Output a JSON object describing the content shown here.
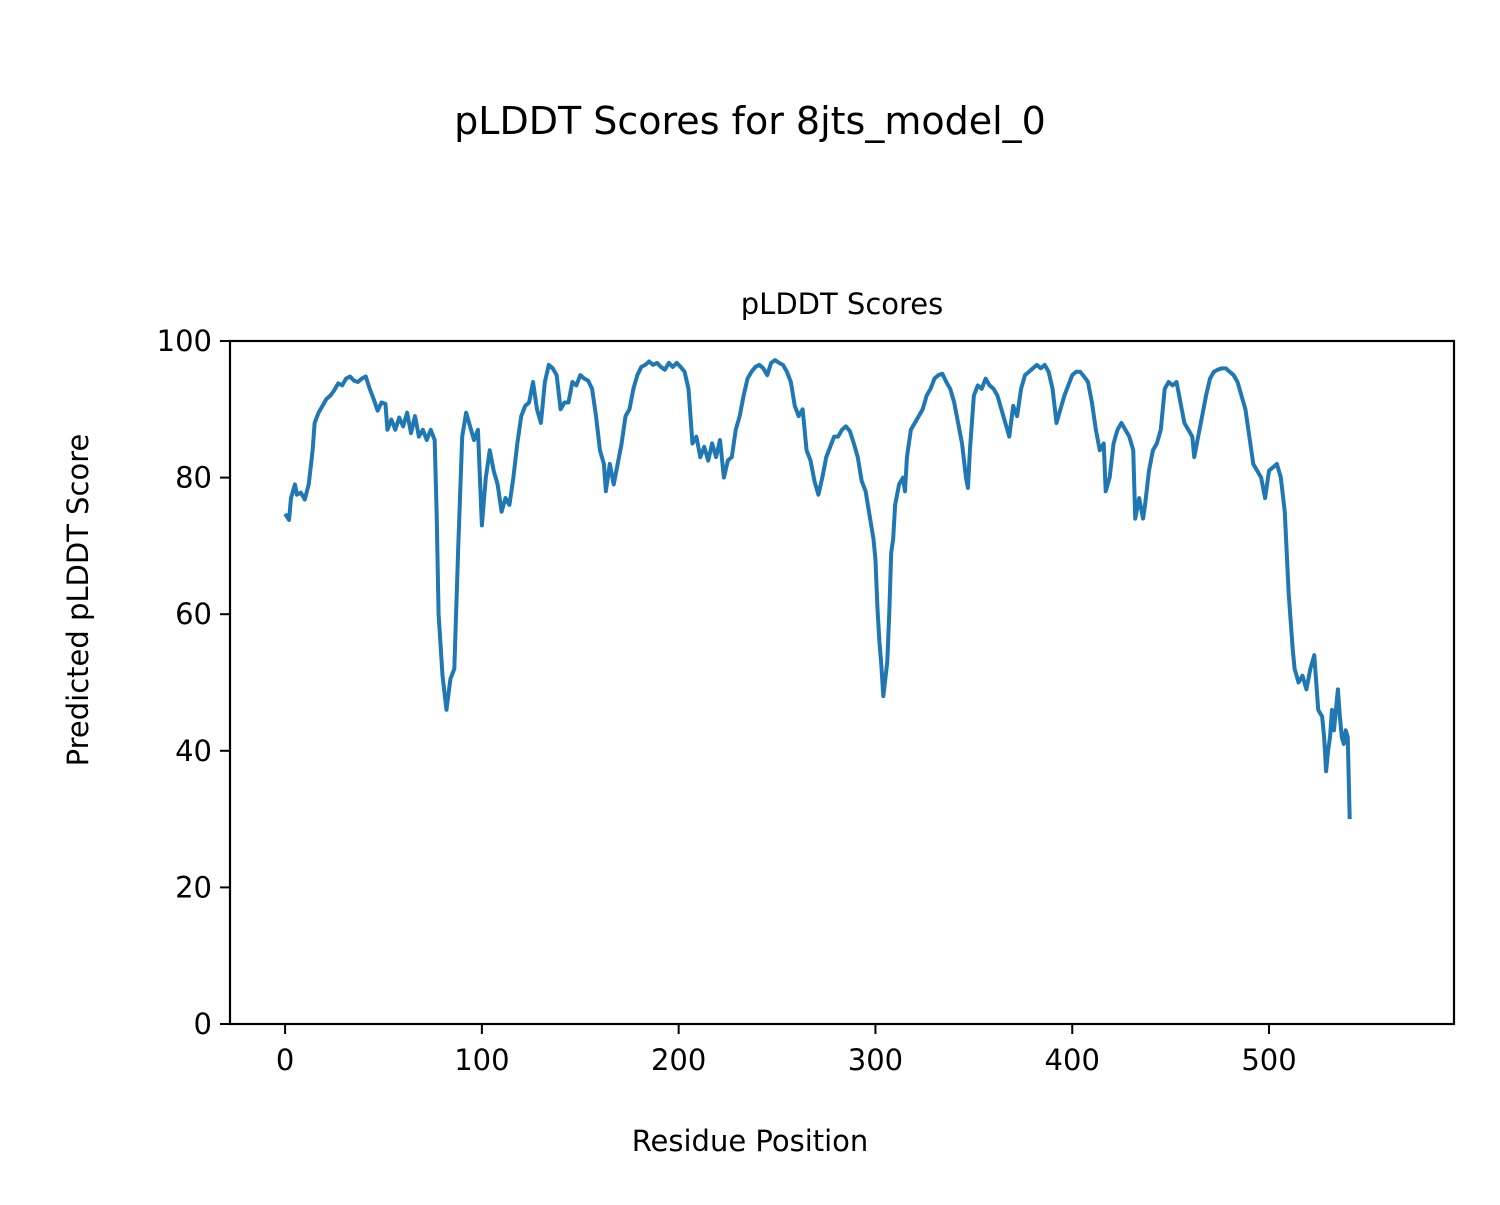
{
  "chart_data": {
    "type": "line",
    "suptitle": "pLDDT Scores for 8jts_model_0",
    "title": "pLDDT Scores",
    "xlabel": "Residue Position",
    "ylabel": "Predicted pLDDT Score",
    "xlim": [
      -28,
      594
    ],
    "ylim": [
      0,
      100
    ],
    "xticks": [
      0,
      100,
      200,
      300,
      400,
      500
    ],
    "yticks": [
      0,
      20,
      40,
      60,
      80,
      100
    ],
    "grid": false,
    "legend": "none",
    "color": "#1f77b4",
    "series": [
      {
        "points": [
          [
            0,
            74.7
          ],
          [
            2,
            73.8
          ],
          [
            3,
            77
          ],
          [
            5,
            79
          ],
          [
            6,
            77.5
          ],
          [
            8,
            77.8
          ],
          [
            10,
            76.8
          ],
          [
            12,
            79
          ],
          [
            14,
            84
          ],
          [
            15,
            88
          ],
          [
            17,
            89.5
          ],
          [
            19,
            90.5
          ],
          [
            21,
            91.5
          ],
          [
            23,
            92
          ],
          [
            25,
            92.8
          ],
          [
            27,
            93.8
          ],
          [
            29,
            93.5
          ],
          [
            31,
            94.5
          ],
          [
            33,
            94.8
          ],
          [
            35,
            94.2
          ],
          [
            37,
            94
          ],
          [
            39,
            94.5
          ],
          [
            41,
            94.8
          ],
          [
            43,
            93
          ],
          [
            45,
            91.5
          ],
          [
            47,
            89.8
          ],
          [
            49,
            91
          ],
          [
            51,
            90.8
          ],
          [
            52,
            87
          ],
          [
            54,
            88.5
          ],
          [
            56,
            87
          ],
          [
            58,
            88.8
          ],
          [
            60,
            87.5
          ],
          [
            62,
            89.5
          ],
          [
            64,
            86.5
          ],
          [
            66,
            89
          ],
          [
            68,
            86
          ],
          [
            70,
            87
          ],
          [
            72,
            85.5
          ],
          [
            74,
            87
          ],
          [
            76,
            85.5
          ],
          [
            77,
            75
          ],
          [
            78,
            60
          ],
          [
            80,
            51
          ],
          [
            82,
            46
          ],
          [
            84,
            50.5
          ],
          [
            86,
            52
          ],
          [
            88,
            70
          ],
          [
            90,
            86
          ],
          [
            92,
            89.5
          ],
          [
            94,
            87.5
          ],
          [
            96,
            85.5
          ],
          [
            98,
            87
          ],
          [
            100,
            73
          ],
          [
            102,
            80
          ],
          [
            104,
            84
          ],
          [
            106,
            81
          ],
          [
            108,
            79
          ],
          [
            110,
            75
          ],
          [
            112,
            77
          ],
          [
            114,
            76
          ],
          [
            116,
            80
          ],
          [
            118,
            85
          ],
          [
            120,
            89
          ],
          [
            122,
            90.5
          ],
          [
            124,
            91
          ],
          [
            126,
            94
          ],
          [
            128,
            90
          ],
          [
            130,
            88
          ],
          [
            132,
            94
          ],
          [
            134,
            96.5
          ],
          [
            136,
            96
          ],
          [
            138,
            95
          ],
          [
            140,
            90
          ],
          [
            142,
            91
          ],
          [
            144,
            91
          ],
          [
            146,
            94
          ],
          [
            148,
            93.5
          ],
          [
            150,
            95
          ],
          [
            152,
            94.5
          ],
          [
            154,
            94.2
          ],
          [
            156,
            93
          ],
          [
            158,
            89
          ],
          [
            160,
            84
          ],
          [
            162,
            82
          ],
          [
            163,
            78
          ],
          [
            165,
            82
          ],
          [
            167,
            79
          ],
          [
            169,
            82
          ],
          [
            171,
            85
          ],
          [
            173,
            89
          ],
          [
            175,
            90
          ],
          [
            177,
            93
          ],
          [
            179,
            95
          ],
          [
            181,
            96.2
          ],
          [
            183,
            96.5
          ],
          [
            185,
            97
          ],
          [
            187,
            96.5
          ],
          [
            189,
            96.8
          ],
          [
            191,
            96.2
          ],
          [
            193,
            95.8
          ],
          [
            195,
            96.8
          ],
          [
            197,
            96.2
          ],
          [
            199,
            96.8
          ],
          [
            201,
            96.2
          ],
          [
            203,
            95.5
          ],
          [
            205,
            93
          ],
          [
            207,
            85
          ],
          [
            209,
            86
          ],
          [
            211,
            83
          ],
          [
            213,
            84.5
          ],
          [
            215,
            82.5
          ],
          [
            217,
            85
          ],
          [
            219,
            83
          ],
          [
            221,
            85.5
          ],
          [
            223,
            80
          ],
          [
            225,
            82.5
          ],
          [
            227,
            83
          ],
          [
            229,
            87
          ],
          [
            231,
            89
          ],
          [
            233,
            92
          ],
          [
            235,
            94.5
          ],
          [
            237,
            95.5
          ],
          [
            239,
            96.2
          ],
          [
            241,
            96.5
          ],
          [
            243,
            96
          ],
          [
            245,
            95
          ],
          [
            247,
            96.8
          ],
          [
            249,
            97.2
          ],
          [
            251,
            96.8
          ],
          [
            253,
            96.5
          ],
          [
            255,
            95.5
          ],
          [
            257,
            94
          ],
          [
            259,
            90.5
          ],
          [
            261,
            89
          ],
          [
            263,
            90
          ],
          [
            265,
            84
          ],
          [
            267,
            82.5
          ],
          [
            269,
            79.5
          ],
          [
            271,
            77.5
          ],
          [
            273,
            80
          ],
          [
            275,
            83
          ],
          [
            277,
            84.5
          ],
          [
            279,
            86
          ],
          [
            281,
            86
          ],
          [
            283,
            87
          ],
          [
            285,
            87.5
          ],
          [
            287,
            86.8
          ],
          [
            289,
            85
          ],
          [
            291,
            83
          ],
          [
            293,
            79.5
          ],
          [
            295,
            78
          ],
          [
            297,
            74.5
          ],
          [
            299,
            71
          ],
          [
            300,
            68
          ],
          [
            301,
            61
          ],
          [
            302,
            56
          ],
          [
            303,
            52.5
          ],
          [
            304,
            48
          ],
          [
            305,
            50.5
          ],
          [
            306,
            53
          ],
          [
            307,
            60
          ],
          [
            308,
            69
          ],
          [
            309,
            71
          ],
          [
            310,
            76
          ],
          [
            312,
            79
          ],
          [
            314,
            80
          ],
          [
            315,
            78
          ],
          [
            316,
            83
          ],
          [
            318,
            87
          ],
          [
            320,
            88
          ],
          [
            322,
            89
          ],
          [
            324,
            90
          ],
          [
            326,
            92
          ],
          [
            328,
            93
          ],
          [
            330,
            94.5
          ],
          [
            332,
            95
          ],
          [
            334,
            95.2
          ],
          [
            336,
            94
          ],
          [
            338,
            93
          ],
          [
            340,
            91
          ],
          [
            342,
            88
          ],
          [
            344,
            85
          ],
          [
            346,
            80
          ],
          [
            347,
            78.5
          ],
          [
            348,
            84
          ],
          [
            350,
            92
          ],
          [
            352,
            93.5
          ],
          [
            354,
            93
          ],
          [
            356,
            94.5
          ],
          [
            358,
            93.5
          ],
          [
            360,
            93
          ],
          [
            362,
            92
          ],
          [
            364,
            90
          ],
          [
            366,
            88
          ],
          [
            368,
            86
          ],
          [
            370,
            90.5
          ],
          [
            372,
            89
          ],
          [
            374,
            93
          ],
          [
            376,
            95
          ],
          [
            378,
            95.5
          ],
          [
            380,
            96
          ],
          [
            382,
            96.5
          ],
          [
            384,
            96
          ],
          [
            386,
            96.5
          ],
          [
            388,
            95.5
          ],
          [
            390,
            93
          ],
          [
            392,
            88
          ],
          [
            394,
            90
          ],
          [
            396,
            92
          ],
          [
            398,
            93.5
          ],
          [
            400,
            95
          ],
          [
            402,
            95.5
          ],
          [
            404,
            95.5
          ],
          [
            406,
            94.8
          ],
          [
            408,
            94
          ],
          [
            410,
            91
          ],
          [
            412,
            87
          ],
          [
            414,
            84
          ],
          [
            416,
            85
          ],
          [
            417,
            78
          ],
          [
            419,
            80
          ],
          [
            421,
            85
          ],
          [
            423,
            87
          ],
          [
            425,
            88
          ],
          [
            427,
            87
          ],
          [
            429,
            86
          ],
          [
            431,
            84
          ],
          [
            432,
            74
          ],
          [
            434,
            77
          ],
          [
            436,
            74
          ],
          [
            437,
            76
          ],
          [
            439,
            81
          ],
          [
            441,
            84
          ],
          [
            443,
            85
          ],
          [
            445,
            87
          ],
          [
            447,
            93
          ],
          [
            449,
            94
          ],
          [
            451,
            93.5
          ],
          [
            453,
            94
          ],
          [
            455,
            91
          ],
          [
            457,
            88
          ],
          [
            459,
            87
          ],
          [
            461,
            86
          ],
          [
            462,
            83
          ],
          [
            464,
            86
          ],
          [
            466,
            89
          ],
          [
            468,
            92
          ],
          [
            470,
            94.5
          ],
          [
            472,
            95.5
          ],
          [
            474,
            95.8
          ],
          [
            476,
            96
          ],
          [
            478,
            96
          ],
          [
            480,
            95.5
          ],
          [
            482,
            95
          ],
          [
            484,
            94
          ],
          [
            486,
            92
          ],
          [
            488,
            90
          ],
          [
            490,
            86
          ],
          [
            492,
            82
          ],
          [
            494,
            81
          ],
          [
            496,
            80
          ],
          [
            498,
            77
          ],
          [
            500,
            81
          ],
          [
            502,
            81.5
          ],
          [
            504,
            82
          ],
          [
            506,
            80
          ],
          [
            508,
            75
          ],
          [
            510,
            63
          ],
          [
            512,
            55
          ],
          [
            513,
            52
          ],
          [
            515,
            50
          ],
          [
            517,
            51
          ],
          [
            519,
            49
          ],
          [
            521,
            52
          ],
          [
            523,
            54
          ],
          [
            524,
            50
          ],
          [
            525,
            46
          ],
          [
            527,
            45
          ],
          [
            528,
            42
          ],
          [
            529,
            37
          ],
          [
            530,
            40
          ],
          [
            531,
            42
          ],
          [
            532,
            46
          ],
          [
            533,
            43
          ],
          [
            534,
            46
          ],
          [
            535,
            49
          ],
          [
            536,
            45
          ],
          [
            537,
            42
          ],
          [
            538,
            41
          ],
          [
            539,
            43
          ],
          [
            540,
            42
          ],
          [
            541,
            30
          ]
        ]
      }
    ]
  }
}
